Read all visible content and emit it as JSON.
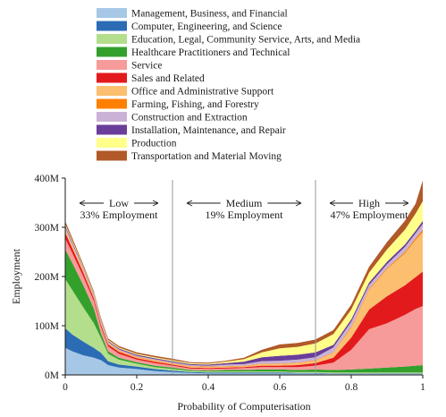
{
  "chart_data": {
    "type": "area",
    "stacked": true,
    "xlabel": "Probability of Computerisation",
    "ylabel": "Employment",
    "xlim": [
      0,
      1
    ],
    "ylim": [
      0,
      400
    ],
    "x_ticks": [
      "0",
      "0.2",
      "0.4",
      "0.6",
      "0.8",
      "1"
    ],
    "y_ticks": [
      "0M",
      "100M",
      "200M",
      "300M",
      "400M"
    ],
    "legend_position": "top",
    "zones": [
      {
        "name": "Low",
        "label": "33% Employment"
      },
      {
        "name": "Medium",
        "label": "19% Employment"
      },
      {
        "name": "High",
        "label": "47% Employment"
      }
    ],
    "zone_boundaries": [
      0.3,
      0.7
    ],
    "x": [
      0,
      0.02,
      0.05,
      0.08,
      0.1,
      0.12,
      0.15,
      0.2,
      0.25,
      0.3,
      0.35,
      0.4,
      0.45,
      0.5,
      0.55,
      0.6,
      0.65,
      0.7,
      0.75,
      0.8,
      0.85,
      0.9,
      0.95,
      0.98,
      1
    ],
    "series": [
      {
        "name": "Management, Business, and Financial",
        "color": "#a6c8e6",
        "values": [
          55,
          48,
          40,
          35,
          30,
          20,
          15,
          12,
          8,
          6,
          4,
          3,
          3,
          3,
          3,
          3,
          3,
          3,
          2,
          2,
          2,
          2,
          2,
          2,
          2
        ]
      },
      {
        "name": "Computer, Engineering, and Science",
        "color": "#2b6cb4",
        "values": [
          40,
          34,
          28,
          20,
          15,
          8,
          6,
          5,
          4,
          3,
          2,
          2,
          2,
          2,
          2,
          2,
          1,
          1,
          1,
          1,
          1,
          1,
          1,
          1,
          1
        ]
      },
      {
        "name": "Education, Legal, Community Service, Arts, and Media",
        "color": "#b3de8c",
        "values": [
          100,
          90,
          70,
          50,
          30,
          15,
          10,
          6,
          4,
          3,
          2,
          2,
          2,
          2,
          2,
          2,
          2,
          2,
          2,
          2,
          2,
          2,
          2,
          2,
          2
        ]
      },
      {
        "name": "Healthcare Practitioners and Technical",
        "color": "#33a02c",
        "values": [
          60,
          55,
          45,
          30,
          10,
          5,
          4,
          3,
          3,
          3,
          2,
          2,
          3,
          3,
          4,
          4,
          4,
          5,
          5,
          6,
          8,
          10,
          12,
          14,
          15
        ]
      },
      {
        "name": "Service",
        "color": "#f79a9a",
        "values": [
          22,
          20,
          18,
          15,
          12,
          10,
          8,
          5,
          5,
          4,
          3,
          3,
          3,
          4,
          5,
          5,
          6,
          8,
          15,
          40,
          80,
          90,
          105,
          115,
          120
        ]
      },
      {
        "name": "Sales and Related",
        "color": "#e31a1c",
        "values": [
          12,
          10,
          8,
          6,
          5,
          4,
          4,
          3,
          3,
          2,
          2,
          2,
          2,
          2,
          3,
          3,
          4,
          5,
          10,
          25,
          40,
          55,
          60,
          65,
          70
        ]
      },
      {
        "name": "Office and Administrative Support",
        "color": "#fbbf6f",
        "values": [
          6,
          5,
          4,
          3,
          3,
          2,
          2,
          2,
          2,
          2,
          2,
          2,
          2,
          2,
          3,
          3,
          4,
          5,
          10,
          20,
          40,
          55,
          65,
          75,
          80
        ]
      },
      {
        "name": "Farming, Fishing, and Forestry",
        "color": "#ff7f00",
        "values": [
          1,
          1,
          1,
          1,
          1,
          1,
          1,
          1,
          1,
          1,
          1,
          1,
          1,
          1,
          1,
          1,
          1,
          1,
          1,
          2,
          2,
          2,
          3,
          4,
          5
        ]
      },
      {
        "name": "Construction and Extraction",
        "color": "#cab2d6",
        "values": [
          4,
          4,
          3,
          3,
          3,
          2,
          2,
          2,
          2,
          2,
          2,
          2,
          3,
          3,
          5,
          6,
          6,
          6,
          10,
          10,
          8,
          8,
          10,
          10,
          12
        ]
      },
      {
        "name": "Installation, Maintenance, and Repair",
        "color": "#6a3d9a",
        "values": [
          3,
          3,
          2,
          2,
          2,
          2,
          2,
          2,
          2,
          2,
          2,
          2,
          3,
          5,
          8,
          10,
          10,
          10,
          5,
          5,
          5,
          5,
          5,
          5,
          6
        ]
      },
      {
        "name": "Production",
        "color": "#ffff8a",
        "values": [
          3,
          3,
          2,
          2,
          2,
          2,
          2,
          2,
          2,
          2,
          2,
          2,
          3,
          5,
          10,
          15,
          16,
          18,
          22,
          20,
          20,
          25,
          30,
          35,
          40
        ]
      },
      {
        "name": "Transportation and Material Moving",
        "color": "#b15928",
        "values": [
          6,
          5,
          4,
          3,
          3,
          3,
          3,
          3,
          3,
          3,
          2,
          2,
          2,
          3,
          5,
          8,
          8,
          8,
          8,
          10,
          12,
          15,
          18,
          20,
          42
        ]
      }
    ]
  }
}
